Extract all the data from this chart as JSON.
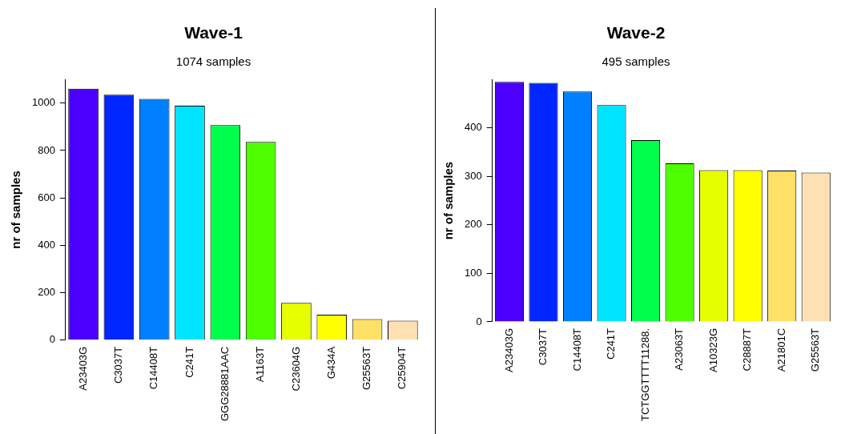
{
  "chart_data": [
    {
      "type": "bar",
      "title": "Wave-1",
      "subtitle": "1074 samples",
      "ylabel": "nr of samples",
      "categories": [
        "A23403G",
        "C3037T",
        "C14408T",
        "C241T",
        "GGG28881AAC",
        "A1163T",
        "C23604G",
        "G434A",
        "G25563T",
        "C25904T"
      ],
      "values": [
        1061,
        1036,
        1018,
        989,
        907,
        836,
        157,
        107,
        89,
        82
      ],
      "colors": [
        "#4b00ff",
        "#0026ff",
        "#0080ff",
        "#00e5ff",
        "#00ff4d",
        "#4dff00",
        "#e6ff00",
        "#ffff00",
        "#ffe066",
        "#ffe0b3"
      ],
      "ylim": [
        0,
        1100
      ],
      "yticks": [
        0,
        200,
        400,
        600,
        800,
        1000
      ],
      "grid": false,
      "legend": false
    },
    {
      "type": "bar",
      "title": "Wave-2",
      "subtitle": "495 samples",
      "ylabel": "nr of samples",
      "categories": [
        "A23403G",
        "C3037T",
        "C14408T",
        "C241T",
        "TCTGGTTTT11288.",
        "A23063T",
        "A10323G",
        "C28887T",
        "A21801C",
        "G25563T"
      ],
      "values": [
        495,
        493,
        475,
        447,
        375,
        327,
        313,
        313,
        312,
        308
      ],
      "colors": [
        "#4b00ff",
        "#0026ff",
        "#0080ff",
        "#00e5ff",
        "#00ff4d",
        "#4dff00",
        "#e6ff00",
        "#ffff00",
        "#ffe066",
        "#ffe0b3"
      ],
      "ylim": [
        0,
        500
      ],
      "yticks": [
        0,
        100,
        200,
        300,
        400
      ],
      "grid": false,
      "legend": false
    }
  ]
}
